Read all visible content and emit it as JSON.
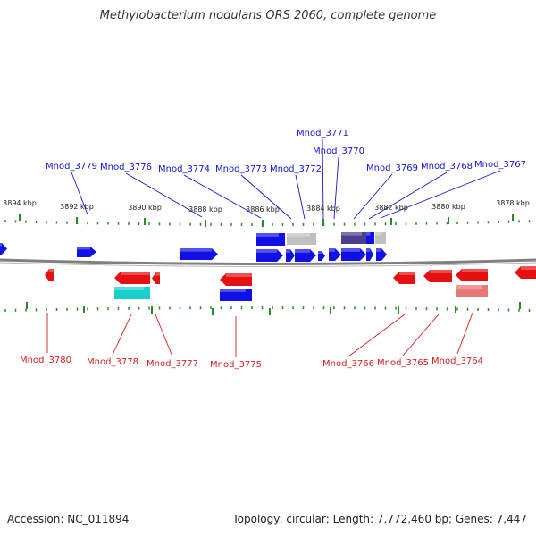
{
  "title": "Methylobacterium nodulans ORS 2060, complete genome",
  "footer": {
    "accession": "Accession: NC_011894",
    "topology": "Topology: circular; Length: 7,772,460 bp; Genes: 7,447"
  },
  "colors": {
    "forward": "#1010e6",
    "reverse": "#e61010",
    "cyan": "#1ccfcf",
    "pink": "#e87878",
    "gray": "#c0c0c0",
    "purple": "#4a3f8a",
    "tick": "#2a8a2a",
    "axis": "#808080",
    "upper_label": "#1414c8",
    "lower_label": "#d21e1e"
  },
  "ticks": [
    {
      "label": "3894 kbp"
    },
    {
      "label": "3892 kbp"
    },
    {
      "label": "3890 kbp"
    },
    {
      "label": "3888 kbp"
    },
    {
      "label": "3886 kbp"
    },
    {
      "label": "3884 kbp"
    },
    {
      "label": "3882 kbp"
    },
    {
      "label": "3880 kbp"
    },
    {
      "label": "3878 kbp"
    }
  ],
  "upper_labels": [
    {
      "text": "Mnod_3779"
    },
    {
      "text": "Mnod_3776"
    },
    {
      "text": "Mnod_3774"
    },
    {
      "text": "Mnod_3773"
    },
    {
      "text": "Mnod_3772"
    },
    {
      "text": "Mnod_3771"
    },
    {
      "text": "Mnod_3770"
    },
    {
      "text": "Mnod_3769"
    },
    {
      "text": "Mnod_3768"
    },
    {
      "text": "Mnod_3767"
    }
  ],
  "lower_labels": [
    {
      "text": "Mnod_3780"
    },
    {
      "text": "Mnod_3778"
    },
    {
      "text": "Mnod_3777"
    },
    {
      "text": "Mnod_3775"
    },
    {
      "text": "Mnod_3766"
    },
    {
      "text": "Mnod_3765"
    },
    {
      "text": "Mnod_3764"
    }
  ]
}
